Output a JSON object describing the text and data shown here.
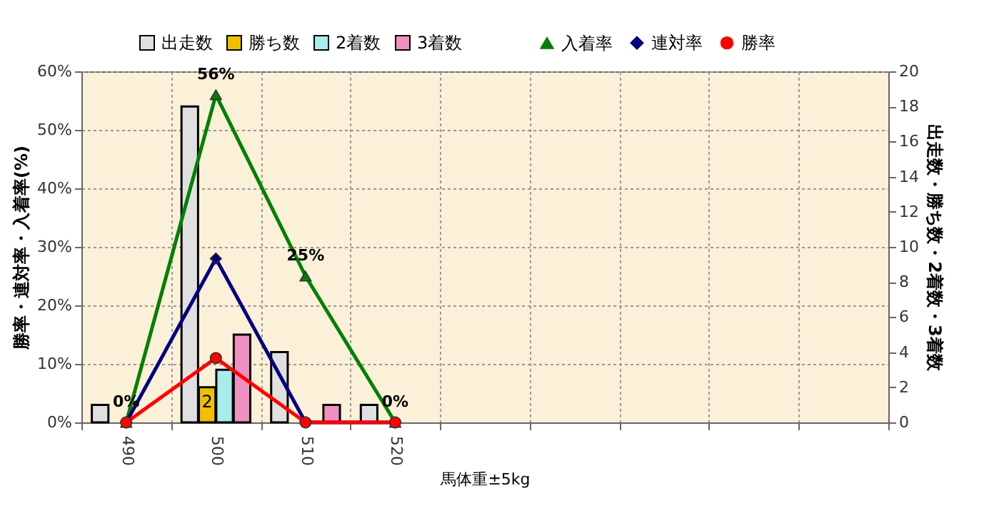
{
  "chart_data": {
    "type": "bar",
    "xlabel": "馬体重±5kg",
    "ylabel": "勝率・連対率・入着率(%)",
    "y2label": "出走数・勝ち数・2着数・3着数",
    "categories": [
      "490",
      "500",
      "510",
      "520",
      null,
      null,
      null,
      null,
      null
    ],
    "series": [
      {
        "name": "出走数",
        "axis": "y2",
        "color": "#e0e0e0",
        "values": [
          1,
          18,
          4,
          1,
          null,
          null,
          null,
          null,
          null
        ]
      },
      {
        "name": "勝ち数",
        "axis": "y2",
        "color": "#f0c000",
        "values": [
          null,
          2,
          null,
          null,
          null,
          null,
          null,
          null,
          null
        ],
        "value_labels": [
          null,
          "2",
          null,
          null,
          null,
          null,
          null,
          null,
          null
        ]
      },
      {
        "name": "2着数",
        "axis": "y2",
        "color": "#a8ecec",
        "values": [
          null,
          3,
          null,
          null,
          null,
          null,
          null,
          null,
          null
        ]
      },
      {
        "name": "3着数",
        "axis": "y2",
        "color": "#f090c0",
        "values": [
          null,
          5,
          1,
          null,
          null,
          null,
          null,
          null,
          null
        ]
      },
      {
        "name": "入着率",
        "type": "line",
        "marker": "triangle",
        "color": "#008000",
        "values": [
          0,
          56,
          25,
          0,
          null,
          null,
          null,
          null,
          null
        ],
        "value_labels": [
          "0%",
          "56%",
          "25%",
          "0%",
          null,
          null,
          null,
          null,
          null
        ]
      },
      {
        "name": "連対率",
        "type": "line",
        "marker": "diamond",
        "color": "#000080",
        "values": [
          0,
          28,
          0,
          0,
          null,
          null,
          null,
          null,
          null
        ]
      },
      {
        "name": "勝率",
        "type": "line",
        "marker": "circle",
        "color": "#ff0000",
        "values": [
          0,
          11,
          0,
          0,
          null,
          null,
          null,
          null,
          null
        ]
      }
    ],
    "ylim": [
      0,
      60
    ],
    "yticks": [
      {
        "value": 0,
        "label": "0%"
      },
      {
        "value": 10,
        "label": "10%"
      },
      {
        "value": 20,
        "label": "20%"
      },
      {
        "value": 30,
        "label": "30%"
      },
      {
        "value": 40,
        "label": "40%"
      },
      {
        "value": 50,
        "label": "50%"
      },
      {
        "value": 60,
        "label": "60%"
      }
    ],
    "y2lim": [
      0,
      20
    ],
    "y2ticks": [
      0,
      2,
      4,
      6,
      8,
      10,
      12,
      14,
      16,
      18,
      20
    ],
    "grid": true,
    "legend": "top"
  }
}
